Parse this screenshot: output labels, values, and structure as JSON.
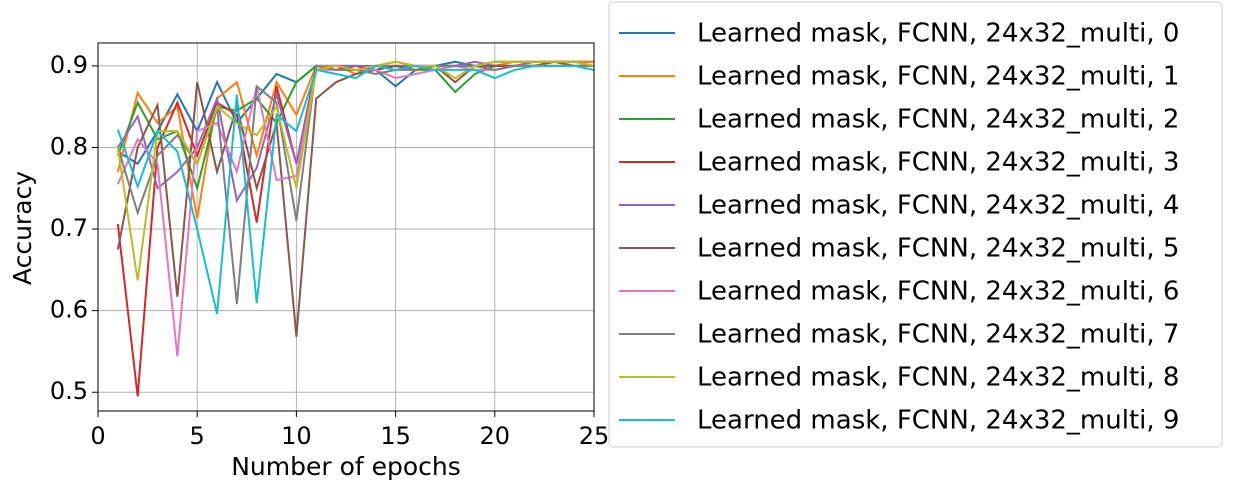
{
  "chart_data": {
    "type": "line",
    "x_label": "Number of epochs",
    "y_label": "Accuracy",
    "x": [
      1,
      2,
      3,
      4,
      5,
      6,
      7,
      8,
      9,
      10,
      11,
      12,
      13,
      14,
      15,
      16,
      17,
      18,
      19,
      20,
      21,
      22,
      23,
      24,
      25
    ],
    "xlim": [
      0,
      25
    ],
    "xticks": [
      0,
      5,
      10,
      15,
      20,
      25
    ],
    "ylim": [
      0.477,
      0.928
    ],
    "yticks": [
      0.5,
      0.6,
      0.7,
      0.8,
      0.9
    ],
    "grid": true,
    "legend": "outside right",
    "series": [
      {
        "name": "Learned mask, FCNN, 24x32_multi, 0",
        "color": "#1f77b4",
        "values": [
          0.795,
          0.78,
          0.82,
          0.865,
          0.82,
          0.88,
          0.83,
          0.86,
          0.89,
          0.88,
          0.9,
          0.9,
          0.9,
          0.895,
          0.875,
          0.895,
          0.9,
          0.905,
          0.9,
          0.905,
          0.905,
          0.905,
          0.905,
          0.905,
          0.905
        ]
      },
      {
        "name": "Learned mask, FCNN, 24x32_multi, 1",
        "color": "#ff7f0e",
        "values": [
          0.77,
          0.867,
          0.83,
          0.85,
          0.713,
          0.86,
          0.88,
          0.79,
          0.88,
          0.84,
          0.9,
          0.9,
          0.89,
          0.9,
          0.905,
          0.9,
          0.895,
          0.9,
          0.9,
          0.9,
          0.905,
          0.905,
          0.905,
          0.905,
          0.905
        ]
      },
      {
        "name": "Learned mask, FCNN, 24x32_multi, 2",
        "color": "#2ca02c",
        "values": [
          0.79,
          0.855,
          0.81,
          0.82,
          0.75,
          0.85,
          0.845,
          0.86,
          0.83,
          0.88,
          0.9,
          0.895,
          0.895,
          0.9,
          0.9,
          0.895,
          0.895,
          0.868,
          0.89,
          0.9,
          0.9,
          0.9,
          0.905,
          0.9,
          0.9
        ]
      },
      {
        "name": "Learned mask, FCNN, 24x32_multi, 3",
        "color": "#d62728",
        "values": [
          0.706,
          0.495,
          0.8,
          0.855,
          0.79,
          0.855,
          0.84,
          0.708,
          0.875,
          0.78,
          0.9,
          0.895,
          0.9,
          0.895,
          0.9,
          0.9,
          0.9,
          0.9,
          0.9,
          0.895,
          0.9,
          0.9,
          0.905,
          0.905,
          0.9
        ]
      },
      {
        "name": "Learned mask, FCNN, 24x32_multi, 4",
        "color": "#9467bd",
        "values": [
          0.8,
          0.838,
          0.75,
          0.77,
          0.8,
          0.86,
          0.735,
          0.775,
          0.865,
          0.78,
          0.895,
          0.9,
          0.9,
          0.9,
          0.9,
          0.9,
          0.9,
          0.9,
          0.905,
          0.9,
          0.9,
          0.905,
          0.905,
          0.905,
          0.9
        ]
      },
      {
        "name": "Learned mask, FCNN, 24x32_multi, 5",
        "color": "#8c564b",
        "values": [
          0.675,
          0.8,
          0.852,
          0.617,
          0.88,
          0.77,
          0.85,
          0.75,
          0.83,
          0.568,
          0.86,
          0.88,
          0.89,
          0.895,
          0.9,
          0.895,
          0.9,
          0.88,
          0.9,
          0.9,
          0.9,
          0.9,
          0.905,
          0.9,
          0.9
        ]
      },
      {
        "name": "Learned mask, FCNN, 24x32_multi, 6",
        "color": "#e377c2",
        "values": [
          0.755,
          0.81,
          0.78,
          0.544,
          0.82,
          0.83,
          0.77,
          0.875,
          0.76,
          0.765,
          0.895,
          0.895,
          0.895,
          0.895,
          0.885,
          0.89,
          0.895,
          0.9,
          0.895,
          0.895,
          0.9,
          0.9,
          0.9,
          0.9,
          0.9
        ]
      },
      {
        "name": "Learned mask, FCNN, 24x32_multi, 7",
        "color": "#7f7f7f",
        "values": [
          0.8,
          0.72,
          0.79,
          0.815,
          0.78,
          0.85,
          0.608,
          0.875,
          0.855,
          0.71,
          0.9,
          0.895,
          0.895,
          0.89,
          0.895,
          0.895,
          0.9,
          0.9,
          0.9,
          0.895,
          0.9,
          0.9,
          0.9,
          0.9,
          0.9
        ]
      },
      {
        "name": "Learned mask, FCNN, 24x32_multi, 8",
        "color": "#bcbd22",
        "values": [
          0.8,
          0.637,
          0.82,
          0.82,
          0.78,
          0.85,
          0.83,
          0.815,
          0.85,
          0.75,
          0.895,
          0.9,
          0.895,
          0.9,
          0.905,
          0.9,
          0.9,
          0.885,
          0.9,
          0.905,
          0.905,
          0.905,
          0.905,
          0.905,
          0.9
        ]
      },
      {
        "name": "Learned mask, FCNN, 24x32_multi, 9",
        "color": "#17becf",
        "values": [
          0.822,
          0.752,
          0.82,
          0.795,
          0.7,
          0.596,
          0.865,
          0.609,
          0.84,
          0.82,
          0.895,
          0.89,
          0.885,
          0.9,
          0.895,
          0.9,
          0.895,
          0.895,
          0.895,
          0.885,
          0.895,
          0.9,
          0.9,
          0.9,
          0.895
        ]
      }
    ]
  }
}
